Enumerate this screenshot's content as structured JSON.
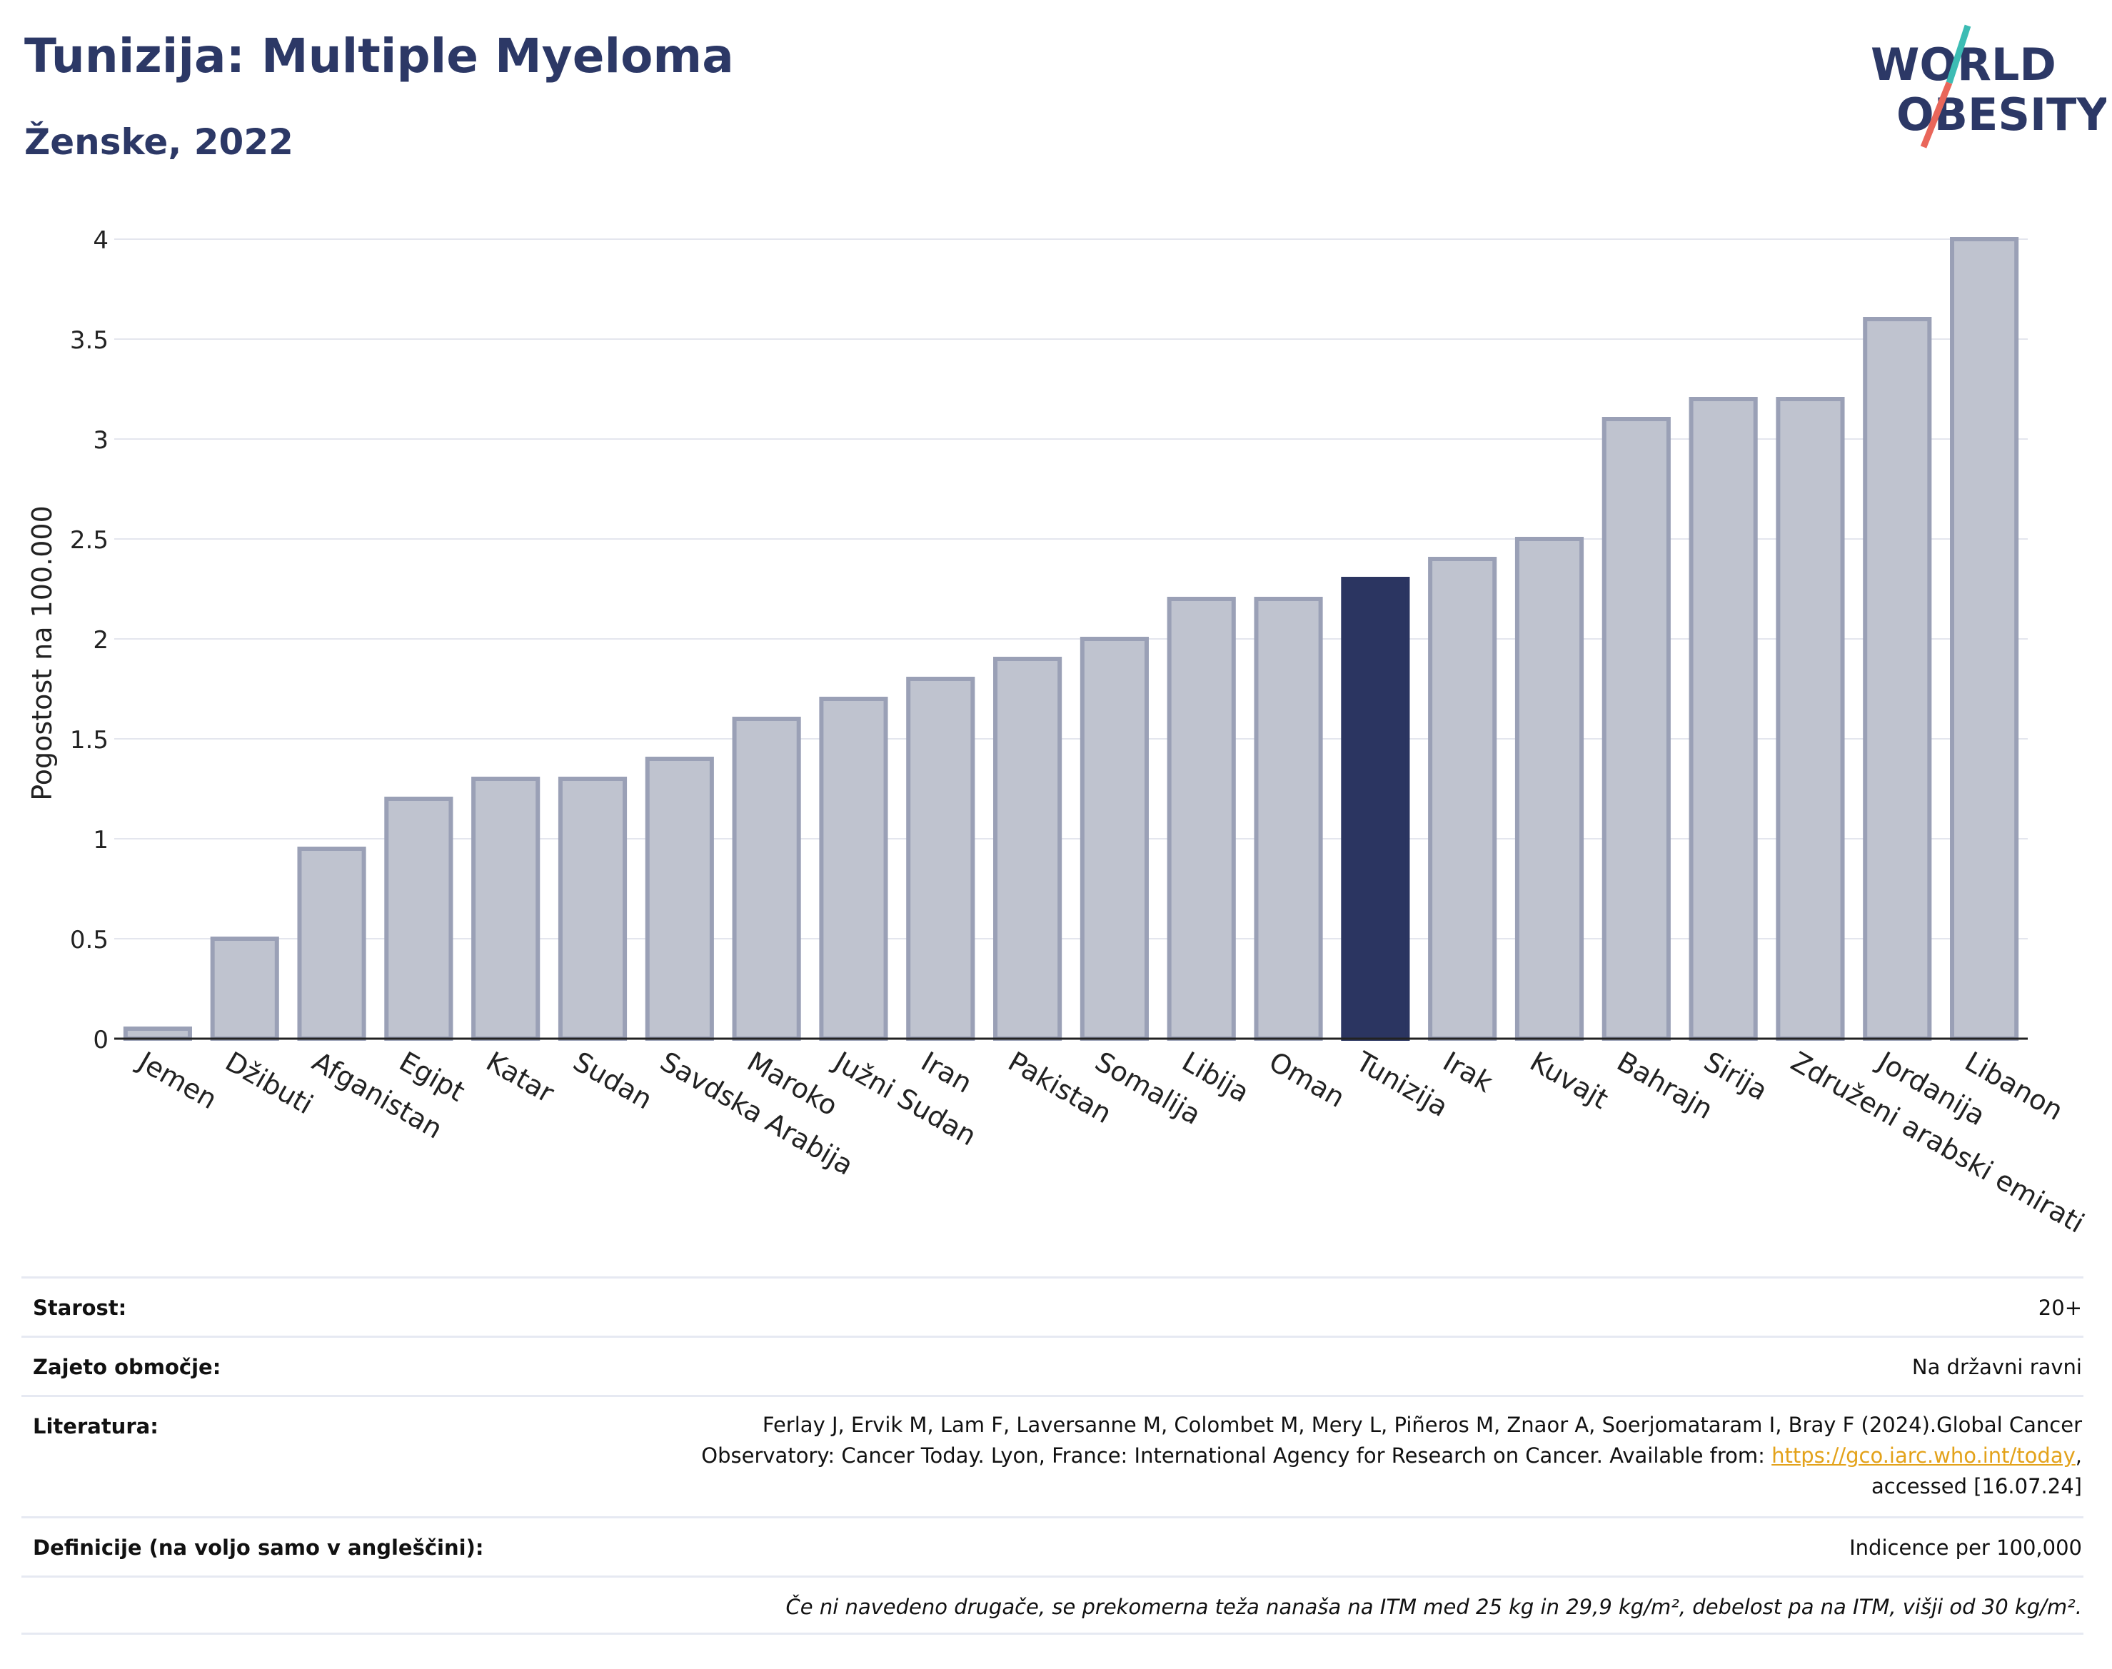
{
  "header": {
    "title": "Tunizija: Multiple Myeloma",
    "subtitle": "Ženske, 2022",
    "logo_line1": "WORLD",
    "logo_line2": "OBESITY"
  },
  "chart_data": {
    "type": "bar",
    "title": "Tunizija: Multiple Myeloma",
    "subtitle": "Ženske, 2022",
    "xlabel": "",
    "ylabel": "Pogostost na 100.000",
    "ylim": [
      0,
      4
    ],
    "yticks": [
      0,
      0.5,
      1,
      1.5,
      2,
      2.5,
      3,
      3.5,
      4
    ],
    "ytick_labels": [
      "0",
      "0.5",
      "1",
      "1.5",
      "2",
      "2.5",
      "3",
      "3.5",
      "4"
    ],
    "grid": true,
    "highlight": "Tunizija",
    "categories": [
      "Jemen",
      "Džibuti",
      "Afganistan",
      "Egipt",
      "Katar",
      "Sudan",
      "Savdska Arabija",
      "Maroko",
      "Južni Sudan",
      "Iran",
      "Pakistan",
      "Somalija",
      "Libija",
      "Oman",
      "Tunizija",
      "Irak",
      "Kuvajt",
      "Bahrajn",
      "Sirija",
      "Združeni arabski emirati",
      "Jordanija",
      "Libanon"
    ],
    "values": [
      0.05,
      0.5,
      0.95,
      1.2,
      1.3,
      1.3,
      1.4,
      1.6,
      1.7,
      1.8,
      1.9,
      2.0,
      2.2,
      2.2,
      2.3,
      2.4,
      2.5,
      3.1,
      3.2,
      3.2,
      3.6,
      4.0
    ],
    "colors": {
      "bar": "#bfc3cf",
      "bar_border": "#9aa0b6",
      "highlight": "#2b3561",
      "axis": "#222222",
      "grid": "#e4e6ee"
    }
  },
  "meta": {
    "age_label": "Starost:",
    "age_value": "20+",
    "coverage_label": "Zajeto območje:",
    "coverage_value": "Na državni ravni",
    "reference_label": "Literatura:",
    "reference_line1": "Ferlay J, Ervik M, Lam F, Laversanne M, Colombet M, Mery L, Piñeros M, Znaor A, Soerjomataram I, Bray F (2024).Global Cancer",
    "reference_line2": "Observatory: Cancer Today. Lyon, France: International Agency for Research on Cancer. Available from:",
    "reference_link": "https://gco.iarc.who.int/today",
    "reference_line3": "accessed [16.07.24]",
    "definitions_label": "Definicije (na voljo samo v angleščini):",
    "definitions_value": "Indicence per 100,000",
    "footnote": "Če ni navedeno drugače, se prekomerna teža nanaša na ITM med 25 kg in 29,9 kg/m², debelost pa na ITM, višji od 30 kg/m²."
  }
}
